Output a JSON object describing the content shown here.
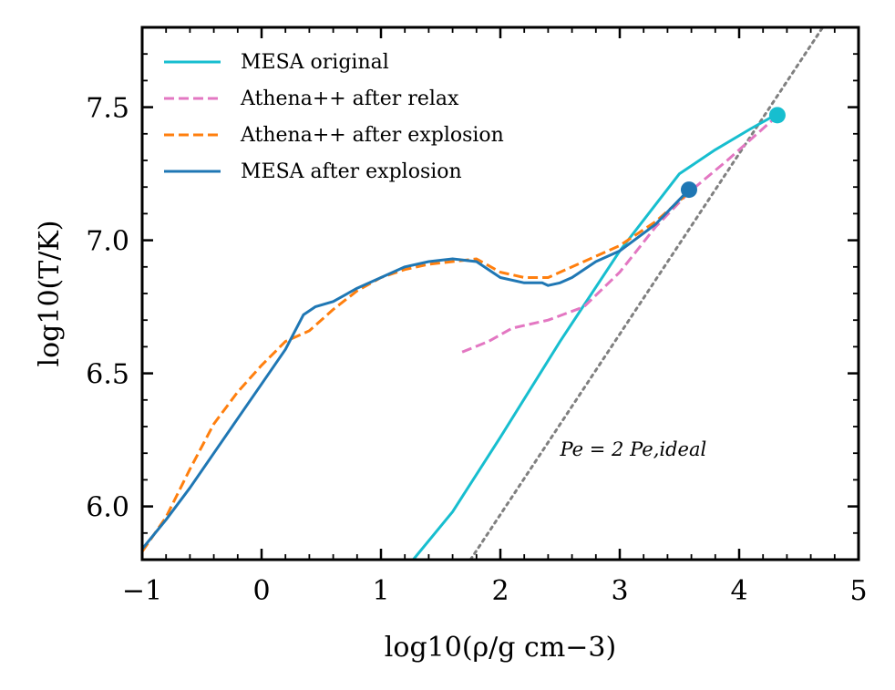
{
  "chart_data": {
    "type": "line",
    "title": "",
    "xlabel": "log10(ρ/g cm−3)",
    "ylabel": "log10(T/K)",
    "xlim": [
      -1,
      5
    ],
    "ylim": [
      5.8,
      7.8
    ],
    "x_ticks": [
      -1,
      0,
      1,
      2,
      3,
      4,
      5
    ],
    "x_tick_labels": [
      "−1",
      "0",
      "1",
      "2",
      "3",
      "4",
      "5"
    ],
    "y_ticks": [
      6.0,
      6.5,
      7.0,
      7.5
    ],
    "y_tick_labels": [
      "6.0",
      "6.5",
      "7.0",
      "7.5"
    ],
    "legend_position": "top-left",
    "series": [
      {
        "name": "MESA original",
        "color": "#17becf",
        "style": "solid",
        "x": [
          1.27,
          1.6,
          2.0,
          2.5,
          3.0,
          3.5,
          3.8,
          4.1,
          4.3
        ],
        "y": [
          5.8,
          5.98,
          6.26,
          6.62,
          6.96,
          7.25,
          7.34,
          7.42,
          7.47
        ]
      },
      {
        "name": "Athena++ after relax",
        "color": "#e377c2",
        "style": "dashed",
        "x": [
          1.68,
          1.9,
          2.1,
          2.4,
          2.7,
          3.0,
          3.3,
          3.58,
          3.9,
          4.3
        ],
        "y": [
          6.58,
          6.62,
          6.67,
          6.7,
          6.75,
          6.88,
          7.05,
          7.18,
          7.3,
          7.46
        ]
      },
      {
        "name": "Athena++ after explosion",
        "color": "#ff7f0e",
        "style": "dashed",
        "x": [
          -1.0,
          -0.8,
          -0.6,
          -0.4,
          -0.2,
          0.0,
          0.2,
          0.4,
          0.6,
          0.8,
          1.0,
          1.2,
          1.4,
          1.6,
          1.8,
          2.0,
          2.2,
          2.4,
          2.6,
          2.8,
          3.0,
          3.3,
          3.58
        ],
        "y": [
          5.83,
          5.96,
          6.14,
          6.31,
          6.43,
          6.53,
          6.62,
          6.66,
          6.74,
          6.81,
          6.86,
          6.89,
          6.91,
          6.92,
          6.93,
          6.88,
          6.86,
          6.86,
          6.9,
          6.94,
          6.98,
          7.07,
          7.18
        ]
      },
      {
        "name": "MESA after explosion",
        "color": "#1f77b4",
        "style": "solid",
        "x": [
          -1.0,
          -0.8,
          -0.6,
          -0.4,
          -0.2,
          0.0,
          0.2,
          0.35,
          0.45,
          0.6,
          0.8,
          1.0,
          1.2,
          1.4,
          1.6,
          1.8,
          2.0,
          2.2,
          2.35,
          2.4,
          2.5,
          2.6,
          2.8,
          3.0,
          3.3,
          3.58
        ],
        "y": [
          5.84,
          5.95,
          6.07,
          6.2,
          6.33,
          6.46,
          6.59,
          6.72,
          6.75,
          6.77,
          6.82,
          6.86,
          6.9,
          6.92,
          6.93,
          6.92,
          6.86,
          6.84,
          6.84,
          6.83,
          6.84,
          6.86,
          6.92,
          6.96,
          7.06,
          7.19
        ]
      }
    ],
    "reference_line": {
      "name": "Pe = 2 Pe,ideal",
      "color": "#808080",
      "style": "dotted",
      "x": [
        1.75,
        4.7
      ],
      "y": [
        5.8,
        7.8
      ]
    },
    "markers": [
      {
        "name": "MESA after explosion endpoint",
        "x": 3.58,
        "y": 7.19,
        "color": "#1f77b4"
      },
      {
        "name": "MESA original endpoint",
        "x": 4.32,
        "y": 7.47,
        "color": "#17becf"
      }
    ],
    "annotations": [
      {
        "text": "Pe = 2 Pe,ideal",
        "x": 2.5,
        "y": 6.19
      }
    ]
  }
}
